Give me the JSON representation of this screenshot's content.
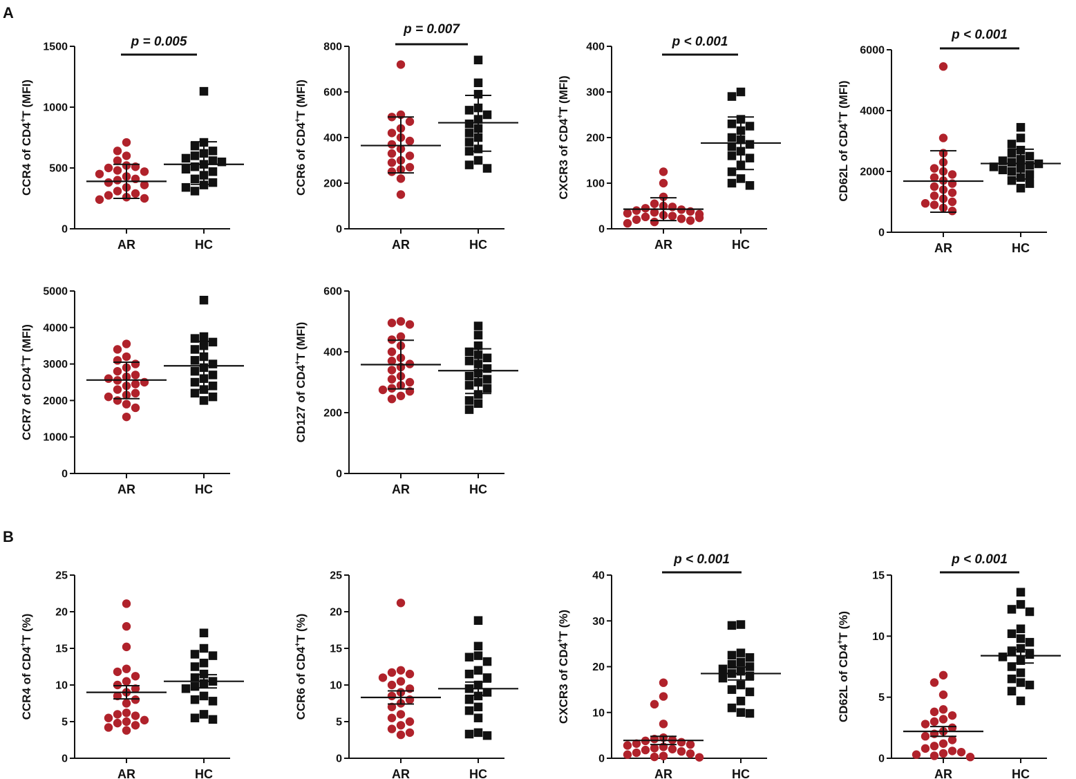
{
  "figure": {
    "panel_labels": [
      "A",
      "B"
    ],
    "colors": {
      "AR": "#b0222b",
      "HC": "#111111",
      "axis": "#111111"
    }
  },
  "chart_data": [
    {
      "id": "A1",
      "panel": "A",
      "type": "scatter",
      "ylabel": {
        "pre": "CCR4 of CD4",
        "sup": "+",
        "post": "T (MFI)"
      },
      "categories": [
        "AR",
        "HC"
      ],
      "ylim": [
        0,
        1500
      ],
      "yticks": [
        0,
        500,
        1000,
        1500
      ],
      "significance": "p = 0.005",
      "series": [
        {
          "name": "AR",
          "marker": "circle",
          "mean": 390,
          "err_low": 250,
          "err_high": 530,
          "values": [
            710,
            640,
            600,
            560,
            520,
            510,
            500,
            480,
            470,
            450,
            430,
            410,
            400,
            380,
            360,
            340,
            310,
            290,
            275,
            260,
            250,
            240
          ]
        },
        {
          "name": "HC",
          "marker": "square",
          "mean": 530,
          "err_low": 365,
          "err_high": 715,
          "values": [
            1130,
            710,
            680,
            640,
            620,
            600,
            580,
            560,
            550,
            530,
            510,
            490,
            470,
            440,
            410,
            380,
            360,
            340,
            310
          ]
        }
      ]
    },
    {
      "id": "A2",
      "panel": "A",
      "type": "scatter",
      "ylabel": {
        "pre": "CCR6 of CD4",
        "sup": "+",
        "post": "T (MFI)"
      },
      "categories": [
        "AR",
        "HC"
      ],
      "ylim": [
        0,
        800
      ],
      "yticks": [
        0,
        200,
        400,
        600,
        800
      ],
      "significance": "p = 0.007",
      "series": [
        {
          "name": "AR",
          "marker": "circle",
          "mean": 365,
          "err_low": 245,
          "err_high": 490,
          "values": [
            720,
            500,
            490,
            470,
            440,
            420,
            400,
            385,
            370,
            350,
            330,
            320,
            300,
            290,
            270,
            260,
            250,
            220,
            150
          ]
        },
        {
          "name": "HC",
          "marker": "square",
          "mean": 465,
          "err_low": 340,
          "err_high": 585,
          "values": [
            740,
            640,
            590,
            530,
            520,
            500,
            480,
            460,
            440,
            420,
            400,
            380,
            350,
            340,
            300,
            280,
            265
          ]
        }
      ]
    },
    {
      "id": "A3",
      "panel": "A",
      "type": "scatter",
      "ylabel": {
        "pre": "CXCR3 of CD4",
        "sup": "+",
        "post": "T (MFI)"
      },
      "categories": [
        "AR",
        "HC"
      ],
      "ylim": [
        0,
        400
      ],
      "yticks": [
        0,
        100,
        200,
        300,
        400
      ],
      "significance": "p < 0.001",
      "series": [
        {
          "name": "AR",
          "marker": "circle",
          "mean": 43,
          "err_low": 18,
          "err_high": 68,
          "values": [
            125,
            100,
            70,
            55,
            50,
            48,
            45,
            42,
            40,
            38,
            36,
            34,
            32,
            30,
            28,
            26,
            24,
            22,
            20,
            18,
            15,
            12
          ]
        },
        {
          "name": "HC",
          "marker": "square",
          "mean": 188,
          "err_low": 130,
          "err_high": 245,
          "values": [
            300,
            290,
            240,
            230,
            225,
            215,
            200,
            195,
            185,
            180,
            170,
            160,
            155,
            140,
            125,
            110,
            100,
            95
          ]
        }
      ]
    },
    {
      "id": "A4",
      "panel": "A",
      "type": "scatter",
      "ylabel": {
        "pre": "CD62L of CD4",
        "sup": "+",
        "post": "T (MFI)"
      },
      "categories": [
        "AR",
        "HC"
      ],
      "ylim": [
        0,
        6000
      ],
      "yticks": [
        0,
        2000,
        4000,
        6000
      ],
      "significance": "p < 0.001",
      "series": [
        {
          "name": "AR",
          "marker": "circle",
          "mean": 1680,
          "err_low": 660,
          "err_high": 2680,
          "values": [
            5450,
            3100,
            2600,
            2300,
            2100,
            2000,
            1900,
            1800,
            1700,
            1600,
            1500,
            1400,
            1300,
            1200,
            1100,
            1000,
            950,
            900,
            800,
            700
          ]
        },
        {
          "name": "HC",
          "marker": "square",
          "mean": 2260,
          "err_low": 1750,
          "err_high": 2730,
          "values": [
            3450,
            3100,
            2900,
            2700,
            2600,
            2500,
            2400,
            2350,
            2300,
            2250,
            2200,
            2150,
            2100,
            2050,
            2000,
            1900,
            1800,
            1700,
            1600,
            1450
          ]
        }
      ]
    },
    {
      "id": "A5",
      "panel": "A",
      "type": "scatter",
      "ylabel": {
        "pre": "CCR7 of CD4",
        "sup": "+",
        "post": "T (MFI)"
      },
      "categories": [
        "AR",
        "HC"
      ],
      "ylim": [
        0,
        5000
      ],
      "yticks": [
        0,
        1000,
        2000,
        3000,
        4000,
        5000
      ],
      "significance": "",
      "series": [
        {
          "name": "AR",
          "marker": "circle",
          "mean": 2560,
          "err_low": 2050,
          "err_high": 3050,
          "values": [
            3550,
            3400,
            3200,
            3100,
            3000,
            2900,
            2800,
            2700,
            2650,
            2600,
            2550,
            2500,
            2450,
            2400,
            2300,
            2200,
            2150,
            2100,
            2000,
            1900,
            1800,
            1550
          ]
        },
        {
          "name": "HC",
          "marker": "square",
          "mean": 2950,
          "err_low": 2300,
          "err_high": 3620,
          "values": [
            4750,
            3750,
            3700,
            3600,
            3500,
            3400,
            3200,
            3100,
            3000,
            2900,
            2800,
            2700,
            2600,
            2500,
            2400,
            2300,
            2200,
            2100,
            2000
          ]
        }
      ]
    },
    {
      "id": "A6",
      "panel": "A",
      "type": "scatter",
      "ylabel": {
        "pre": "CD127 of CD4",
        "sup": "+",
        "post": "T (MFI)"
      },
      "categories": [
        "AR",
        "HC"
      ],
      "ylim": [
        0,
        600
      ],
      "yticks": [
        0,
        200,
        400,
        600
      ],
      "significance": "",
      "series": [
        {
          "name": "AR",
          "marker": "circle",
          "mean": 358,
          "err_low": 278,
          "err_high": 438,
          "values": [
            500,
            495,
            490,
            450,
            440,
            420,
            400,
            380,
            370,
            360,
            350,
            340,
            320,
            310,
            300,
            290,
            280,
            275,
            270,
            255,
            245
          ]
        },
        {
          "name": "HC",
          "marker": "square",
          "mean": 338,
          "err_low": 263,
          "err_high": 410,
          "values": [
            485,
            455,
            420,
            400,
            390,
            380,
            370,
            360,
            345,
            330,
            320,
            310,
            300,
            290,
            280,
            260,
            240,
            230,
            210
          ]
        }
      ]
    },
    {
      "id": "B1",
      "panel": "B",
      "type": "scatter",
      "ylabel": {
        "pre": "CCR4 of CD4",
        "sup": "+",
        "post": "T (%)"
      },
      "categories": [
        "AR",
        "HC"
      ],
      "ylim": [
        0,
        25
      ],
      "yticks": [
        0,
        5,
        10,
        15,
        20,
        25
      ],
      "significance": "",
      "series": [
        {
          "name": "AR",
          "marker": "circle",
          "mean": 9.0,
          "err_low": 8.1,
          "err_high": 9.9,
          "values": [
            21.1,
            18.0,
            15.2,
            12.2,
            11.8,
            11.2,
            10.5,
            10.0,
            9.5,
            9.0,
            8.5,
            8.0,
            7.5,
            6.2,
            6.0,
            5.8,
            5.5,
            5.2,
            5.0,
            4.8,
            4.5,
            4.2,
            3.8
          ]
        },
        {
          "name": "HC",
          "marker": "square",
          "mean": 10.5,
          "err_low": 9.6,
          "err_high": 11.4,
          "values": [
            17.1,
            15.0,
            14.2,
            14.0,
            13.0,
            12.5,
            11.5,
            11.0,
            10.5,
            10.2,
            9.8,
            9.5,
            8.5,
            8.0,
            7.8,
            6.0,
            5.5,
            5.3
          ]
        }
      ]
    },
    {
      "id": "B2",
      "panel": "B",
      "type": "scatter",
      "ylabel": {
        "pre": "CCR6 of CD4",
        "sup": "+",
        "post": "T (%)"
      },
      "categories": [
        "AR",
        "HC"
      ],
      "ylim": [
        0,
        25
      ],
      "yticks": [
        0,
        5,
        10,
        15,
        20,
        25
      ],
      "significance": "",
      "series": [
        {
          "name": "AR",
          "marker": "circle",
          "mean": 8.3,
          "err_low": 7.4,
          "err_high": 9.2,
          "values": [
            21.2,
            12.0,
            11.7,
            11.5,
            11.0,
            10.5,
            10.0,
            9.5,
            9.0,
            8.5,
            8.0,
            7.5,
            7.0,
            6.0,
            5.5,
            5.0,
            4.5,
            4.0,
            3.5,
            3.2
          ]
        },
        {
          "name": "HC",
          "marker": "square",
          "mean": 9.5,
          "err_low": 8.6,
          "err_high": 10.4,
          "values": [
            18.8,
            15.3,
            14.0,
            13.8,
            13.2,
            12.0,
            11.5,
            11.0,
            10.0,
            9.5,
            9.0,
            8.5,
            8.0,
            7.0,
            6.5,
            5.5,
            3.5,
            3.3,
            3.1
          ]
        }
      ]
    },
    {
      "id": "B3",
      "panel": "B",
      "type": "scatter",
      "ylabel": {
        "pre": "CXCR3 of CD4",
        "sup": "+",
        "post": "T (%)"
      },
      "categories": [
        "AR",
        "HC"
      ],
      "ylim": [
        0,
        40
      ],
      "yticks": [
        0,
        10,
        20,
        30,
        40
      ],
      "significance": "p < 0.001",
      "series": [
        {
          "name": "AR",
          "marker": "circle",
          "mean": 3.9,
          "err_low": 3.0,
          "err_high": 4.8,
          "values": [
            16.5,
            13.5,
            11.8,
            7.5,
            4.5,
            4.2,
            4.0,
            3.8,
            3.5,
            3.2,
            3.0,
            2.8,
            2.5,
            2.2,
            2.0,
            1.8,
            1.5,
            1.2,
            1.0,
            0.8,
            0.5,
            0.3,
            0.2
          ]
        },
        {
          "name": "HC",
          "marker": "square",
          "mean": 18.5,
          "err_low": 17.1,
          "err_high": 19.9,
          "values": [
            29.2,
            29.0,
            23.0,
            22.5,
            22.0,
            21.0,
            20.5,
            20.0,
            19.5,
            19.0,
            18.5,
            18.0,
            17.5,
            16.0,
            15.0,
            14.5,
            12.5,
            11.0,
            10.0,
            9.8
          ]
        }
      ]
    },
    {
      "id": "B4",
      "panel": "B",
      "type": "scatter",
      "ylabel": {
        "pre": "CD62L of CD4",
        "sup": "+",
        "post": "T (%)"
      },
      "categories": [
        "AR",
        "HC"
      ],
      "ylim": [
        0,
        15
      ],
      "yticks": [
        0,
        5,
        10,
        15
      ],
      "significance": "p < 0.001",
      "series": [
        {
          "name": "AR",
          "marker": "circle",
          "mean": 2.2,
          "err_low": 1.8,
          "err_high": 2.6,
          "values": [
            6.8,
            6.2,
            5.2,
            4.0,
            3.8,
            3.5,
            3.2,
            3.0,
            2.8,
            2.5,
            2.2,
            2.0,
            1.8,
            1.5,
            1.2,
            1.0,
            0.8,
            0.6,
            0.5,
            0.4,
            0.3,
            0.2,
            0.1
          ]
        },
        {
          "name": "HC",
          "marker": "square",
          "mean": 8.4,
          "err_low": 7.8,
          "err_high": 8.9,
          "values": [
            13.6,
            12.6,
            12.2,
            12.0,
            10.6,
            10.2,
            9.8,
            9.5,
            9.0,
            8.8,
            8.5,
            8.3,
            8.0,
            7.5,
            7.0,
            6.5,
            6.2,
            6.0,
            5.5,
            4.7
          ]
        }
      ]
    }
  ]
}
